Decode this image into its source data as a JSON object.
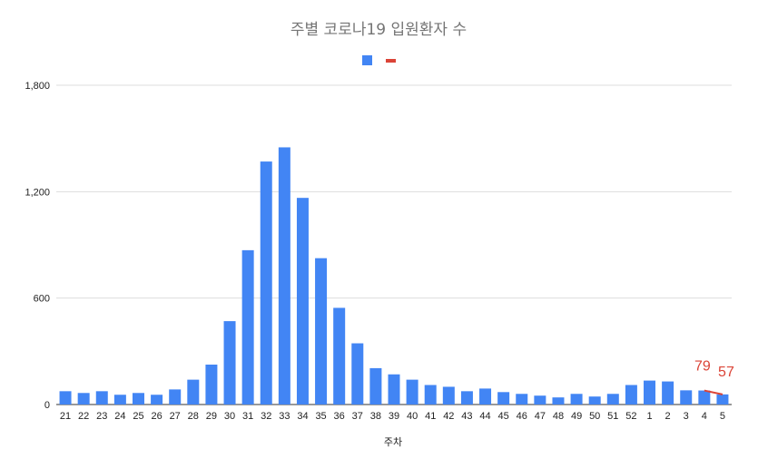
{
  "chart_data": {
    "type": "bar",
    "title": "주별 코로나19 입원환자 수",
    "xlabel": "주차",
    "ylabel": "",
    "ylim": [
      0,
      1800
    ],
    "yticks": [
      0,
      600,
      1200,
      1800
    ],
    "ytick_labels": [
      "0",
      "600",
      "1,200",
      "1,800"
    ],
    "grid": true,
    "legend_position": "top",
    "categories": [
      "21",
      "22",
      "23",
      "24",
      "25",
      "26",
      "27",
      "28",
      "29",
      "30",
      "31",
      "32",
      "33",
      "34",
      "35",
      "36",
      "37",
      "38",
      "39",
      "40",
      "41",
      "42",
      "43",
      "44",
      "45",
      "46",
      "47",
      "48",
      "49",
      "50",
      "51",
      "52",
      "1",
      "2",
      "3",
      "4",
      "5"
    ],
    "series": [
      {
        "color": "#4285f4",
        "values": [
          75,
          65,
          75,
          55,
          65,
          55,
          85,
          140,
          225,
          470,
          870,
          1370,
          1450,
          1165,
          825,
          545,
          345,
          205,
          170,
          140,
          110,
          100,
          75,
          90,
          70,
          60,
          50,
          40,
          60,
          45,
          60,
          110,
          135,
          130,
          80,
          79,
          57
        ]
      },
      {
        "color": "#db4437",
        "type": "line",
        "x": [
          "4",
          "5"
        ],
        "values": [
          79,
          57
        ],
        "data_labels": [
          "79",
          "57"
        ]
      }
    ]
  }
}
